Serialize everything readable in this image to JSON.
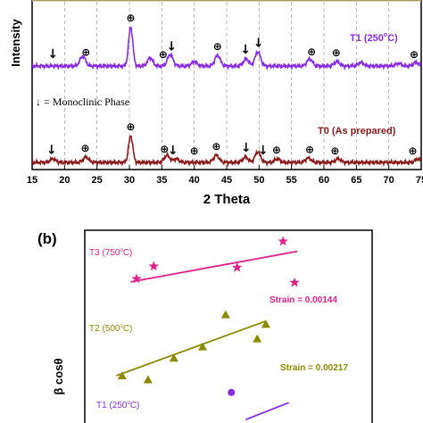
{
  "chart_data": [
    {
      "type": "line",
      "panel_label": "",
      "xlabel": "2 Theta",
      "ylabel": "Intensity",
      "xlim": [
        15,
        75
      ],
      "x_ticks": [
        "15",
        "20",
        "25",
        "30",
        "35",
        "40",
        "45",
        "50",
        "55",
        "60",
        "65",
        "70",
        "75"
      ],
      "grid": "dashed vertical lines every 5 degrees",
      "colors": {
        "T1": "#8a2be2",
        "T0": "#8b1a1a"
      },
      "series": [
        {
          "name": "T1 (250°C)",
          "name_parts": [
            "T1 (250",
            "o",
            "C)"
          ],
          "peaks": [
            {
              "x": 22.8,
              "h": 11
            },
            {
              "x": 30.2,
              "h": 44
            },
            {
              "x": 33.2,
              "h": 9
            },
            {
              "x": 36.3,
              "h": 13
            },
            {
              "x": 40.0,
              "h": 5
            },
            {
              "x": 43.6,
              "h": 12
            },
            {
              "x": 48.0,
              "h": 8
            },
            {
              "x": 49.8,
              "h": 16
            },
            {
              "x": 57.8,
              "h": 8
            },
            {
              "x": 62.0,
              "h": 5
            },
            {
              "x": 65.7,
              "h": 4
            },
            {
              "x": 71.5,
              "h": 3
            },
            {
              "x": 74.2,
              "h": 4
            }
          ],
          "markers": [
            {
              "x": 18.2,
              "symbol": "↓"
            },
            {
              "x": 23.3,
              "symbol": "⊕"
            },
            {
              "x": 30.2,
              "symbol": "⊕"
            },
            {
              "x": 35.2,
              "symbol": "⊕"
            },
            {
              "x": 36.5,
              "symbol": "↓"
            },
            {
              "x": 43.6,
              "symbol": "⊕"
            },
            {
              "x": 47.9,
              "symbol": "↓"
            },
            {
              "x": 49.9,
              "symbol": "↓"
            },
            {
              "x": 58.1,
              "symbol": "⊕"
            },
            {
              "x": 61.9,
              "symbol": "⊕"
            },
            {
              "x": 73.9,
              "symbol": "⊕"
            }
          ]
        },
        {
          "name": "T0 (As prepared)",
          "peaks": [
            {
              "x": 18.2,
              "h": 4
            },
            {
              "x": 23.3,
              "h": 6
            },
            {
              "x": 30.2,
              "h": 30
            },
            {
              "x": 35.8,
              "h": 8
            },
            {
              "x": 37.2,
              "h": 4
            },
            {
              "x": 43.4,
              "h": 8
            },
            {
              "x": 47.9,
              "h": 6
            },
            {
              "x": 49.8,
              "h": 12
            },
            {
              "x": 52.8,
              "h": 4
            },
            {
              "x": 57.6,
              "h": 5
            },
            {
              "x": 62.2,
              "h": 4
            },
            {
              "x": 74.5,
              "h": 4
            }
          ],
          "markers": [
            {
              "x": 18.0,
              "symbol": "↓"
            },
            {
              "x": 23.2,
              "symbol": "⊕"
            },
            {
              "x": 30.2,
              "symbol": "⊕"
            },
            {
              "x": 35.4,
              "symbol": "⊕"
            },
            {
              "x": 36.7,
              "symbol": "↓"
            },
            {
              "x": 40.0,
              "symbol": "⊕"
            },
            {
              "x": 43.4,
              "symbol": "⊕"
            },
            {
              "x": 48.0,
              "symbol": "↓"
            },
            {
              "x": 50.6,
              "symbol": "↓"
            },
            {
              "x": 52.7,
              "symbol": "⊕"
            },
            {
              "x": 57.8,
              "symbol": "⊕"
            },
            {
              "x": 61.7,
              "symbol": "⊕"
            },
            {
              "x": 73.7,
              "symbol": "⊕"
            }
          ]
        }
      ],
      "annotations": [
        "↓ = Monoclinic Phase"
      ]
    },
    {
      "type": "scatter",
      "panel_label": "(b)",
      "xlabel": "",
      "ylabel": "β cosθ",
      "series": [
        {
          "name": "T3 (750°C)",
          "name_parts": [
            "T3 (750",
            "o",
            "C)"
          ],
          "marker": "star",
          "color": "#e0218a",
          "strain_label": "Strain = 0.00144",
          "points": [
            [
              0.18,
              0.28
            ],
            [
              0.24,
              0.48
            ],
            [
              0.53,
              0.46
            ],
            [
              0.69,
              0.88
            ],
            [
              0.73,
              0.22
            ]
          ],
          "fit": [
            [
              0.16,
              0.23
            ],
            [
              0.74,
              0.72
            ]
          ]
        },
        {
          "name": "T2 (500°C)",
          "name_parts": [
            "T2 (500",
            "o",
            "C)"
          ],
          "marker": "triangle",
          "color": "#8b8b00",
          "strain_label": "Strain = 0.00217",
          "points": [
            [
              0.13,
              0.1
            ],
            [
              0.22,
              0.05
            ],
            [
              0.31,
              0.32
            ],
            [
              0.41,
              0.46
            ],
            [
              0.49,
              0.86
            ],
            [
              0.6,
              0.56
            ],
            [
              0.63,
              0.74
            ]
          ],
          "fit": [
            [
              0.11,
              0.1
            ],
            [
              0.63,
              0.78
            ]
          ]
        },
        {
          "name": "T1 (250°C)",
          "name_parts": [
            "T1 (250",
            "o",
            "C)"
          ],
          "marker": "circle",
          "color": "#8a2be2",
          "points": [
            [
              0.51,
              0.9
            ]
          ],
          "fit": [
            [
              0.56,
              0.1
            ],
            [
              0.71,
              0.6
            ]
          ]
        }
      ]
    }
  ]
}
